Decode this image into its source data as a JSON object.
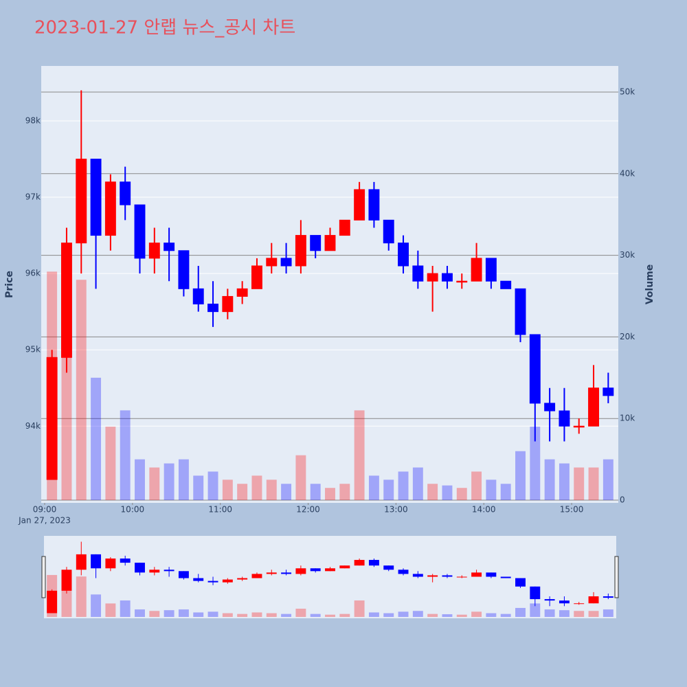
{
  "chart_data": {
    "type": "candlestick",
    "title": "2023-01-27 안랩 뉴스_공시 차트",
    "ylabel": "Price",
    "y2label": "Volume",
    "x_date_label": "Jan 27, 2023",
    "increasing_color": "#ff0000",
    "decreasing_color": "#0000ff",
    "grid": true,
    "rangeslider": true,
    "x": [
      "09:00",
      "09:10",
      "09:20",
      "09:30",
      "09:40",
      "09:50",
      "10:00",
      "10:10",
      "10:20",
      "10:30",
      "10:40",
      "10:50",
      "11:00",
      "11:10",
      "11:20",
      "11:30",
      "11:40",
      "11:50",
      "12:00",
      "12:10",
      "12:20",
      "12:30",
      "12:40",
      "12:50",
      "13:00",
      "13:10",
      "13:20",
      "13:30",
      "13:40",
      "13:50",
      "14:00",
      "14:10",
      "14:20",
      "14:30",
      "14:40",
      "14:50",
      "15:00",
      "15:10",
      "15:20"
    ],
    "open": [
      93300,
      94900,
      96400,
      97500,
      96500,
      97200,
      96900,
      96200,
      96400,
      96300,
      95800,
      95600,
      95500,
      95700,
      95800,
      96100,
      96200,
      96100,
      96500,
      96300,
      96500,
      96700,
      97100,
      96700,
      96400,
      96100,
      95900,
      96000,
      95900,
      95900,
      96200,
      95900,
      95800,
      95200,
      94300,
      94200,
      94000,
      94000,
      94500
    ],
    "high": [
      95000,
      96600,
      98400,
      97500,
      97300,
      97400,
      96900,
      96600,
      96600,
      96300,
      96100,
      95900,
      95800,
      95900,
      96200,
      96400,
      96400,
      96700,
      96500,
      96600,
      96700,
      97200,
      97200,
      96700,
      96500,
      96300,
      96100,
      96100,
      96000,
      96400,
      96200,
      95900,
      95800,
      95200,
      94500,
      94500,
      94100,
      94800,
      94700
    ],
    "low": [
      93300,
      94700,
      96000,
      95800,
      96300,
      96700,
      96000,
      96000,
      95900,
      95700,
      95500,
      95300,
      95400,
      95600,
      95800,
      96000,
      96000,
      96000,
      96200,
      96300,
      96500,
      96700,
      96600,
      96300,
      96000,
      95800,
      95500,
      95800,
      95800,
      95900,
      95800,
      95800,
      95100,
      93800,
      93800,
      93800,
      93900,
      94000,
      94300
    ],
    "close": [
      94900,
      96400,
      97500,
      96500,
      97200,
      96900,
      96200,
      96400,
      96300,
      95800,
      95600,
      95500,
      95700,
      95800,
      96100,
      96200,
      96100,
      96500,
      96300,
      96500,
      96700,
      97100,
      96700,
      96400,
      96100,
      95900,
      96000,
      95900,
      95900,
      96200,
      95900,
      95800,
      95200,
      94300,
      94200,
      94000,
      94000,
      94500,
      94400
    ],
    "volume": [
      28000,
      30000,
      27000,
      15000,
      9000,
      11000,
      5000,
      4000,
      4500,
      5000,
      3000,
      3500,
      2500,
      2000,
      3000,
      2500,
      2000,
      5500,
      2000,
      1500,
      2000,
      11000,
      3000,
      2500,
      3500,
      4000,
      2000,
      1800,
      1500,
      3500,
      2500,
      2000,
      6000,
      9000,
      5000,
      4500,
      4000,
      4000,
      5000
    ],
    "xlim": [
      "09:00",
      "15:30"
    ],
    "xticks": [
      "09:00",
      "10:00",
      "11:00",
      "12:00",
      "13:00",
      "14:00",
      "15:00"
    ],
    "ylim": [
      93030,
      98720
    ],
    "yticks": [
      {
        "value": 94000,
        "label": "94k"
      },
      {
        "value": 95000,
        "label": "95k"
      },
      {
        "value": 96000,
        "label": "96k"
      },
      {
        "value": 97000,
        "label": "97k"
      },
      {
        "value": 98000,
        "label": "98k"
      }
    ],
    "y2lim": [
      0,
      53200
    ],
    "y2ticks": [
      0,
      {
        "value": 10000,
        "label": "10k"
      },
      {
        "value": 20000,
        "label": "20k"
      },
      {
        "value": 30000,
        "label": "30k"
      },
      {
        "value": 40000,
        "label": "40k"
      },
      {
        "value": 50000,
        "label": "50k"
      }
    ]
  }
}
